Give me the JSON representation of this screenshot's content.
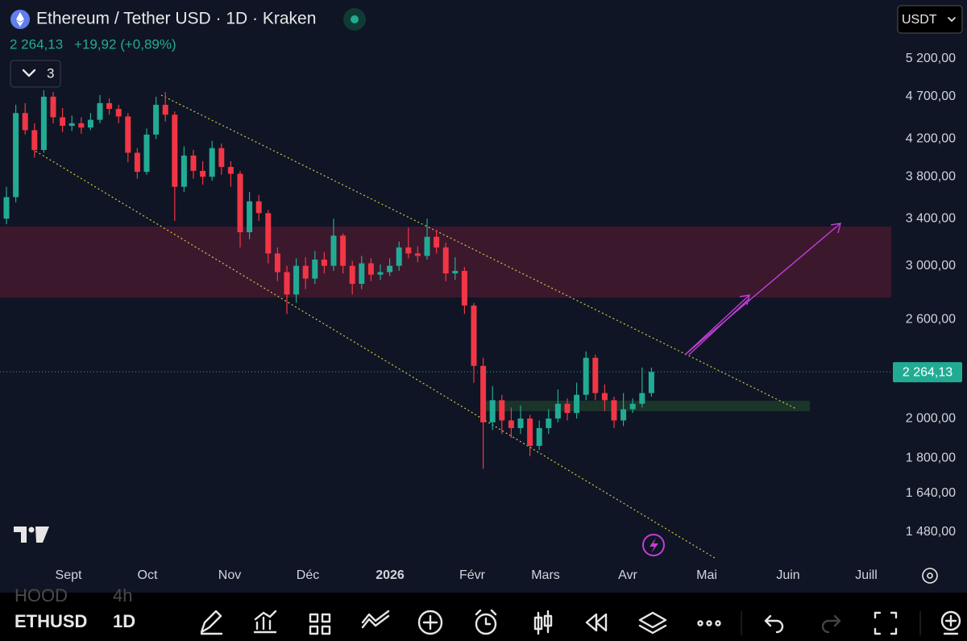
{
  "header": {
    "title": "Ethereum / Tether USD · 1D · Kraken",
    "price": "2 264,13",
    "change": "+19,92 (+0,89%)",
    "currency": "USDT",
    "indicator_count": "3"
  },
  "chart_data": {
    "type": "candlestick",
    "log_scale": true,
    "grid": false,
    "up_color": "#22ab94",
    "down_color": "#f23645",
    "ylim": [
      1358,
      6075
    ],
    "yticks": [
      {
        "value": 1480,
        "label": "1 480,00"
      },
      {
        "value": 1640,
        "label": "1 640,00"
      },
      {
        "value": 1800,
        "label": "1 800,00"
      },
      {
        "value": 2000,
        "label": "2 000,00"
      },
      {
        "value": 2600,
        "label": "2 600,00"
      },
      {
        "value": 3000,
        "label": "3 000,00"
      },
      {
        "value": 3400,
        "label": "3 400,00"
      },
      {
        "value": 3800,
        "label": "3 800,00"
      },
      {
        "value": 4200,
        "label": "4 200,00"
      },
      {
        "value": 4700,
        "label": "4 700,00"
      },
      {
        "value": 5200,
        "label": "5 200,00"
      }
    ],
    "x_axis_labels": [
      "Sept",
      "Oct",
      "Nov",
      "Déc",
      "2026",
      "Févr",
      "Mars",
      "Avr",
      "Mai",
      "Juin",
      "Juill"
    ],
    "last_price": {
      "value": 2264.13,
      "label": "2 264,13"
    },
    "open": [
      3400,
      3600,
      4500,
      4300,
      4080,
      4700,
      4450,
      4350,
      4380,
      4330,
      4420,
      4620,
      4550,
      4460,
      4050,
      3850,
      4250,
      4600,
      4480,
      3700,
      4020,
      3860,
      3800,
      4100,
      3900,
      3830,
      3280,
      3560,
      3450,
      3100,
      2950,
      2780,
      3000,
      2900,
      3050,
      3000,
      3250,
      3000,
      2860,
      3020,
      2930,
      2950,
      3000,
      3150,
      3100,
      3080,
      3240,
      3150,
      2940,
      2960,
      2700,
      2300,
      1980,
      2100,
      1990,
      1950,
      2000,
      1860,
      1950,
      2000,
      2080,
      2030,
      2130,
      2350,
      2140,
      2100,
      1990,
      2050,
      2080,
      2140
    ],
    "high": [
      3700,
      4600,
      4620,
      4380,
      4780,
      4760,
      4560,
      4470,
      4450,
      4500,
      4720,
      4680,
      4600,
      4500,
      4100,
      4320,
      4700,
      4760,
      4520,
      4120,
      4080,
      3960,
      4180,
      4150,
      3960,
      3860,
      3650,
      3620,
      3480,
      3150,
      3000,
      3060,
      3070,
      3120,
      3110,
      3400,
      3270,
      3040,
      3080,
      3060,
      3010,
      3060,
      3200,
      3320,
      3160,
      3400,
      3300,
      3190,
      3070,
      2990,
      2720,
      2350,
      2180,
      2130,
      2060,
      2070,
      2020,
      1990,
      2050,
      2160,
      2110,
      2200,
      2390,
      2370,
      2190,
      2120,
      2140,
      2110,
      2290,
      2290
    ],
    "low": [
      3350,
      3550,
      4250,
      4000,
      4050,
      4380,
      4280,
      4290,
      4260,
      4300,
      4380,
      4480,
      4380,
      3950,
      3780,
      3820,
      4200,
      4400,
      3380,
      3650,
      3780,
      3720,
      3760,
      3820,
      3700,
      3150,
      3220,
      3380,
      3020,
      2880,
      2640,
      2720,
      2820,
      2860,
      2940,
      2960,
      2940,
      2780,
      2820,
      2880,
      2890,
      2920,
      2960,
      3060,
      3030,
      3050,
      3100,
      2880,
      2890,
      2640,
      2200,
      1750,
      1940,
      1920,
      1900,
      1920,
      1810,
      1840,
      1920,
      1980,
      1990,
      2000,
      2100,
      2100,
      2040,
      1950,
      1960,
      2030,
      2060,
      2120
    ],
    "close": [
      3600,
      4500,
      4300,
      4080,
      4700,
      4450,
      4350,
      4380,
      4330,
      4420,
      4620,
      4550,
      4460,
      4050,
      3850,
      4250,
      4600,
      4480,
      3700,
      4020,
      3860,
      3800,
      4100,
      3900,
      3830,
      3280,
      3560,
      3450,
      3100,
      2950,
      2780,
      3000,
      2900,
      3050,
      3000,
      3250,
      3000,
      2860,
      3020,
      2930,
      2950,
      3000,
      3150,
      3100,
      3080,
      3240,
      3150,
      2940,
      2960,
      2700,
      2300,
      1980,
      2100,
      1990,
      1950,
      2000,
      1860,
      1950,
      2000,
      2080,
      2030,
      2130,
      2350,
      2140,
      2100,
      1990,
      2050,
      2080,
      2140,
      2264.13
    ]
  },
  "toolbar": {
    "previous_symbol": "HOOD",
    "previous_interval": "4h",
    "symbol": "ETHUSD",
    "interval": "1D"
  }
}
